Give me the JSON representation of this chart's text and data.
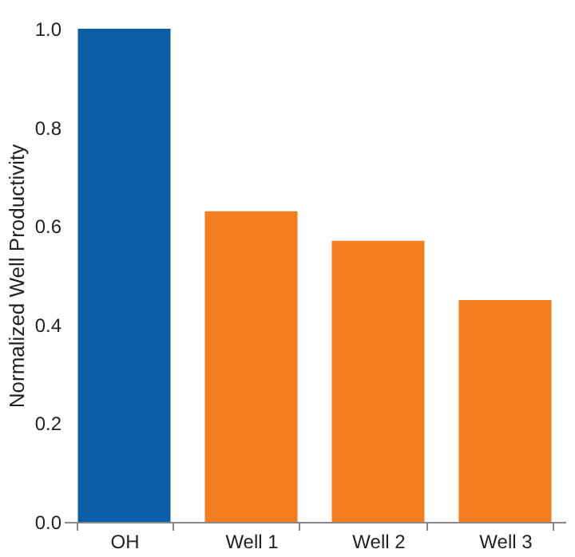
{
  "chart_data": {
    "type": "bar",
    "ylabel": "Normalized Well Productivity",
    "categories": [
      "OH",
      "Well 1",
      "Well 2",
      "Well 3"
    ],
    "values": [
      1.0,
      0.63,
      0.57,
      0.45
    ],
    "colors": [
      "#0a5ea8",
      "#f47d20",
      "#f47d20",
      "#f47d20"
    ],
    "ylim": [
      0,
      1.0
    ],
    "yticks": [
      {
        "value": 0,
        "label": "0.0"
      },
      {
        "value": 0.2,
        "label": "0.2"
      },
      {
        "value": 0.4,
        "label": "0.4"
      },
      {
        "value": 0.6,
        "label": "0.6"
      },
      {
        "value": 0.8,
        "label": "0.8"
      },
      {
        "value": 1.0,
        "label": "1.0"
      }
    ],
    "grid": false
  }
}
